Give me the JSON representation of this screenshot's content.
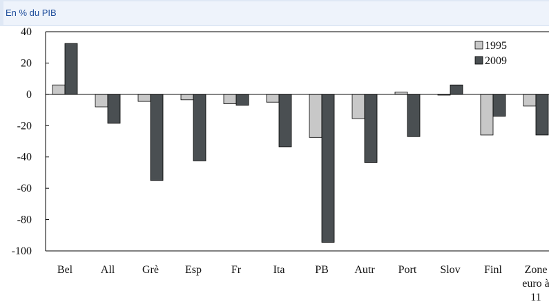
{
  "header": {
    "subtitle": "En % du PIB"
  },
  "colors": {
    "s1995": "#c8c8c8",
    "s2009": "#4a4f52",
    "background": "#ffffff",
    "panel": "#dfe8f5",
    "subtitle": "#1f4e9c"
  },
  "chart_data": {
    "type": "bar",
    "title": "",
    "xlabel": "",
    "ylabel": "",
    "ylim": [
      -100,
      40
    ],
    "yticks": [
      40,
      20,
      0,
      -20,
      -40,
      -60,
      -80,
      -100
    ],
    "categories": [
      "Bel",
      "All",
      "Grè",
      "Esp",
      "Fr",
      "Ita",
      "PB",
      "Autr",
      "Port",
      "Slov",
      "Finl",
      "Zone\neuro à\n11"
    ],
    "category_lines": [
      [
        "Bel"
      ],
      [
        "All"
      ],
      [
        "Grè"
      ],
      [
        "Esp"
      ],
      [
        "Fr"
      ],
      [
        "Ita"
      ],
      [
        "PB"
      ],
      [
        "Autr"
      ],
      [
        "Port"
      ],
      [
        "Slov"
      ],
      [
        "Finl"
      ],
      [
        "Zone",
        "euro à",
        "11"
      ]
    ],
    "series": [
      {
        "name": "1995",
        "values": [
          6,
          -8,
          -4.5,
          -3.5,
          -6,
          -5,
          -27.5,
          -15.5,
          1.5,
          -0.5,
          -26,
          -7.5
        ]
      },
      {
        "name": "2009",
        "values": [
          32.5,
          -18.5,
          -55,
          -42.5,
          -7,
          -33.5,
          -94.5,
          -43.5,
          -27,
          6,
          -14,
          -26
        ]
      }
    ],
    "legend": "top-right",
    "grid": false
  }
}
